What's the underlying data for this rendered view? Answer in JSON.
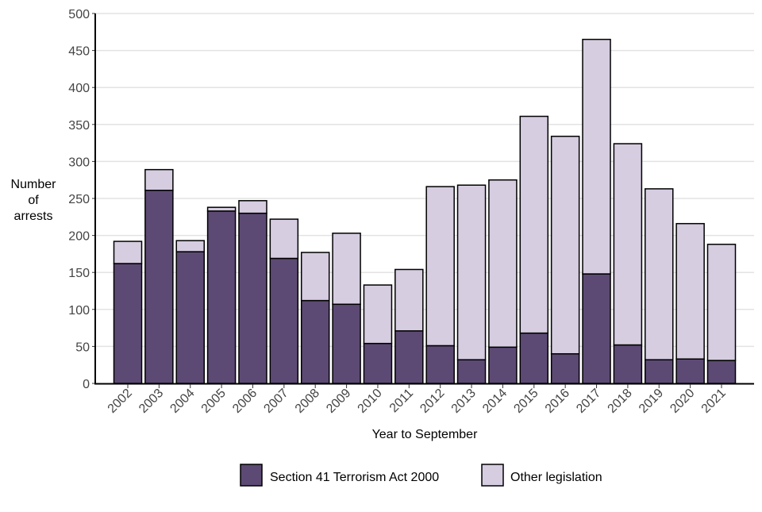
{
  "chart_data": {
    "type": "bar",
    "stacked": true,
    "title": "",
    "xlabel": "Year to September",
    "ylabel": "Number of arrests",
    "ylabel_lines": [
      "Number",
      "of",
      "arrests"
    ],
    "ylim": [
      0,
      500
    ],
    "yticks": [
      0,
      50,
      100,
      150,
      200,
      250,
      300,
      350,
      400,
      450,
      500
    ],
    "grid": "horizontal",
    "legend_position": "bottom",
    "categories": [
      "2002",
      "2003",
      "2004",
      "2005",
      "2006",
      "2007",
      "2008",
      "2009",
      "2010",
      "2011",
      "2012",
      "2013",
      "2014",
      "2015",
      "2016",
      "2017",
      "2018",
      "2019",
      "2020",
      "2021"
    ],
    "series": [
      {
        "name": "Section 41 Terrorism Act 2000",
        "color": "#5c4a74",
        "values": [
          162,
          261,
          178,
          233,
          230,
          169,
          112,
          107,
          54,
          71,
          51,
          32,
          49,
          68,
          40,
          148,
          52,
          32,
          33,
          31
        ]
      },
      {
        "name": "Other legislation",
        "color": "#d6cde1",
        "values": [
          30,
          28,
          15,
          5,
          17,
          53,
          65,
          96,
          79,
          83,
          215,
          236,
          226,
          293,
          294,
          317,
          272,
          231,
          183,
          157
        ]
      }
    ]
  }
}
